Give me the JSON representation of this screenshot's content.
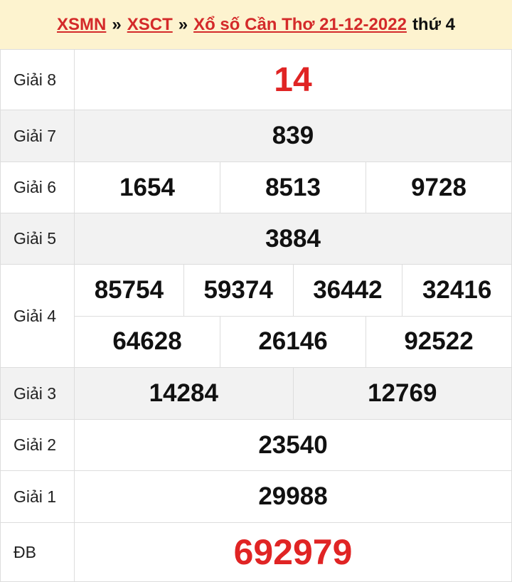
{
  "header": {
    "items": [
      "XSMN",
      "»",
      "XSCT",
      "»",
      "Xổ số Cần Thơ 21-12-2022",
      "thứ 4"
    ]
  },
  "table": {
    "rows": [
      {
        "label": "Giải 8",
        "lines": [
          [
            "14"
          ]
        ]
      },
      {
        "label": "Giải 7",
        "lines": [
          [
            "839"
          ]
        ]
      },
      {
        "label": "Giải 6",
        "lines": [
          [
            "1654",
            "8513",
            "9728"
          ]
        ]
      },
      {
        "label": "Giải 5",
        "lines": [
          [
            "3884"
          ]
        ]
      },
      {
        "label": "Giải 4",
        "lines": [
          [
            "85754",
            "59374",
            "36442",
            "32416"
          ],
          [
            "64628",
            "26146",
            "92522"
          ]
        ]
      },
      {
        "label": "Giải 3",
        "lines": [
          [
            "14284",
            "12769"
          ]
        ]
      },
      {
        "label": "Giải 2",
        "lines": [
          [
            "23540"
          ]
        ]
      },
      {
        "label": "Giải 1",
        "lines": [
          [
            "29988"
          ]
        ]
      },
      {
        "label": "ĐB",
        "lines": [
          [
            "692979"
          ]
        ]
      }
    ]
  }
}
